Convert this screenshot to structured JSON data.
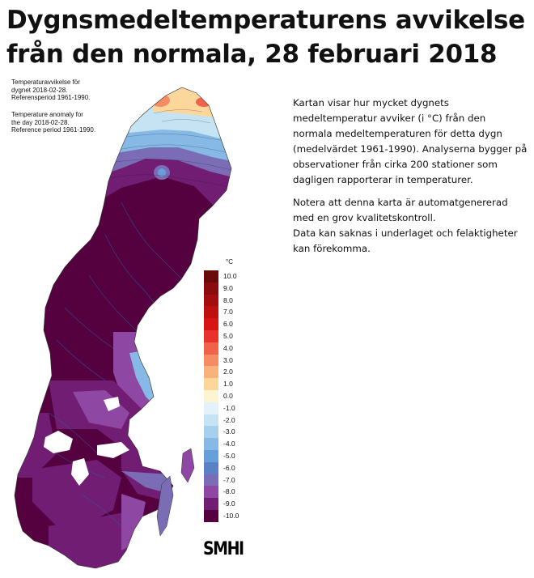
{
  "title": "Dygnsmedeltemperaturens avvikelse från den normala, 28 februari 2018",
  "map_caption": {
    "swedish": "Temperaturavvikelse för\ndygnet 2018-02-28.\nReferensperiod 1961-1990.",
    "english": "Temperature anomaly for\nthe day 2018-02-28.\nReference period 1961-1990."
  },
  "legend": {
    "unit": "°C",
    "items": [
      {
        "label": "10.0",
        "color": "#6b0a0a"
      },
      {
        "label": "9.0",
        "color": "#8a0c0c"
      },
      {
        "label": "8.0",
        "color": "#a30d0d"
      },
      {
        "label": "7.0",
        "color": "#bf1010"
      },
      {
        "label": "6.0",
        "color": "#d81515"
      },
      {
        "label": "5.0",
        "color": "#e8322b"
      },
      {
        "label": "4.0",
        "color": "#f0624a"
      },
      {
        "label": "3.0",
        "color": "#f58c64"
      },
      {
        "label": "2.0",
        "color": "#f8b27a"
      },
      {
        "label": "1.0",
        "color": "#fbd79c"
      },
      {
        "label": "0.0",
        "color": "#fdf5d2"
      },
      {
        "label": "-1.0",
        "color": "#e2f1fa"
      },
      {
        "label": "-2.0",
        "color": "#c6e3f4"
      },
      {
        "label": "-3.0",
        "color": "#a6d0ee"
      },
      {
        "label": "-4.0",
        "color": "#86b9e6"
      },
      {
        "label": "-5.0",
        "color": "#679fda"
      },
      {
        "label": "-6.0",
        "color": "#5a80c6"
      },
      {
        "label": "-7.0",
        "color": "#7b6cb6"
      },
      {
        "label": "-8.0",
        "color": "#8e47a3"
      },
      {
        "label": "-9.0",
        "color": "#701d73"
      },
      {
        "label": "-10.0",
        "color": "#55003f"
      }
    ]
  },
  "logo_text": "SMHI",
  "description": {
    "p1": "Kartan visar hur mycket dygnets medeltemperatur avviker (i °C) från den normala medeltemperaturen för detta dygn (medelvärdet 1961-1990). Analyserna bygger på observationer från cirka 200 stationer som dagligen rapporterar in temperaturer.",
    "p2": "Notera att denna karta är automatgenererad med en grov kvalitetskontroll.\nData kan saknas i underlaget och felaktigheter kan förekomma."
  }
}
